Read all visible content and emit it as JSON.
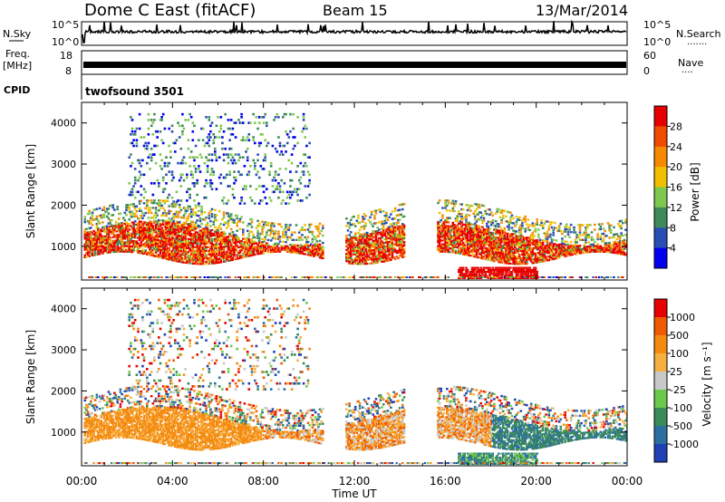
{
  "header": {
    "station": "Dome C East (fitACF)",
    "beam": "Beam 15",
    "date": "13/Mar/2014"
  },
  "left_labels": {
    "nsky": "N.Sky",
    "freq": "Freq.",
    "freq_unit": "[MHz]",
    "cpid": "CPID"
  },
  "right_labels": {
    "nsearch": "N.Search",
    "nsearch_dots": ".......",
    "nave": "Nave",
    "nave_dots": "...."
  },
  "cpid_text": "twofsound 3501",
  "chart_data": [
    {
      "type": "line",
      "panel": "noise",
      "left_ticks": [
        "10^5",
        "10^0"
      ],
      "right_ticks": [
        "10^5",
        "10^0"
      ],
      "x": [
        0,
        24
      ],
      "approx_level": "near 10^4, with occasional spikes"
    },
    {
      "type": "line",
      "panel": "frequency",
      "left_ticks": [
        "18",
        "8"
      ],
      "right_ticks": [
        "60",
        "0"
      ],
      "freq_ylim": [
        8,
        18
      ],
      "nave_ylim": [
        0,
        60
      ]
    },
    {
      "type": "heatmap",
      "panel": "power",
      "ylabel": "Slant Range [km]",
      "yticks": [
        1000,
        2000,
        3000,
        4000
      ],
      "ylim": [
        180,
        4500
      ],
      "xlim": [
        0,
        24
      ],
      "colorbar": {
        "label": "Power [dB]",
        "ticks": [
          "4",
          "8",
          "12",
          "16",
          "20",
          "24",
          "28"
        ],
        "colors": [
          "#0000ee",
          "#2a4fb4",
          "#3f8a5a",
          "#7ec850",
          "#f0c000",
          "#f58a00",
          "#f04a00",
          "#e60000"
        ]
      },
      "description": "Dense scatter band 500-1500 km most of day; patchy echoes to 4000 km around 02-10 UT"
    },
    {
      "type": "heatmap",
      "panel": "velocity",
      "ylabel": "Slant Range [km]",
      "yticks": [
        1000,
        2000,
        3000,
        4000
      ],
      "ylim": [
        180,
        4500
      ],
      "xlim": [
        0,
        24
      ],
      "colorbar": {
        "label": "Velocity [m s⁻¹]",
        "ticks": [
          "1000",
          "500",
          "100",
          "25",
          "-25",
          "-100",
          "-500",
          "-1000"
        ],
        "colors": [
          "#1f3fb4",
          "#2b6fa0",
          "#3a8a5a",
          "#6cc84a",
          "#c8c8c8",
          "#f5b040",
          "#f58a10",
          "#f05a00",
          "#e60000"
        ]
      }
    }
  ],
  "x_axis": {
    "ticks": [
      "00:00",
      "04:00",
      "08:00",
      "12:00",
      "16:00",
      "20:00",
      "00:00"
    ],
    "label": "Time UT"
  }
}
